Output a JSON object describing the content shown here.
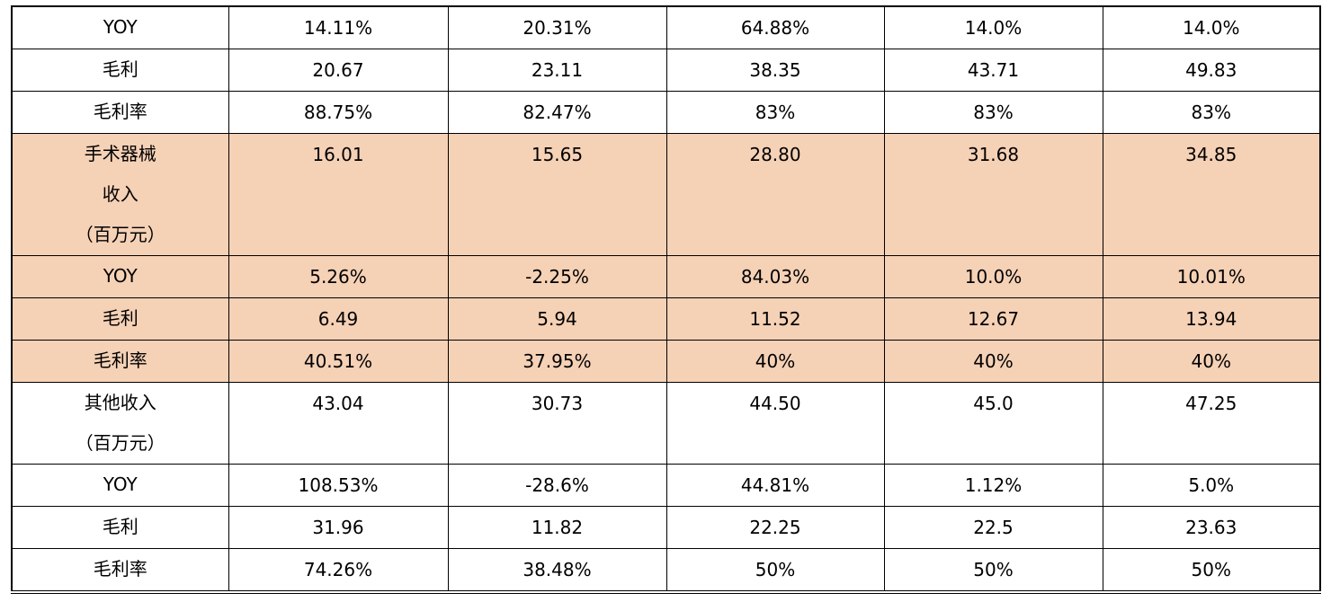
{
  "table": {
    "rows": [
      {
        "label": [
          "YOY"
        ],
        "cells": [
          "14.11%",
          "20.31%",
          "64.88%",
          "14.0%",
          "14.0%"
        ]
      },
      {
        "label": [
          "毛利"
        ],
        "cells": [
          "20.67",
          "23.11",
          "38.35",
          "43.71",
          "49.83"
        ]
      },
      {
        "label": [
          "毛利率"
        ],
        "cells": [
          "88.75%",
          "82.47%",
          "83%",
          "83%",
          "83%"
        ]
      },
      {
        "label": [
          "手术器械",
          "收入",
          "（百万元）"
        ],
        "cells": [
          "16.01",
          "15.65",
          "28.80",
          "31.68",
          "34.85"
        ],
        "shade": "#f5d1b6"
      },
      {
        "label": [
          "YOY"
        ],
        "cells": [
          "5.26%",
          "-2.25%",
          "84.03%",
          "10.0%",
          "10.01%"
        ],
        "shade": "#f5d1b6"
      },
      {
        "label": [
          "毛利"
        ],
        "cells": [
          "6.49",
          "5.94",
          "11.52",
          "12.67",
          "13.94"
        ],
        "shade": "#f5d1b6"
      },
      {
        "label": [
          "毛利率"
        ],
        "cells": [
          "40.51%",
          "37.95%",
          "40%",
          "40%",
          "40%"
        ],
        "shade": "#f5d1b6"
      },
      {
        "label": [
          "其他收入",
          "（百万元）"
        ],
        "cells": [
          "43.04",
          "30.73",
          "44.50",
          "45.0",
          "47.25"
        ]
      },
      {
        "label": [
          "YOY"
        ],
        "cells": [
          "108.53%",
          "-28.6%",
          "44.81%",
          "1.12%",
          "5.0%"
        ]
      },
      {
        "label": [
          "毛利"
        ],
        "cells": [
          "31.96",
          "11.82",
          "22.25",
          "22.5",
          "23.63"
        ]
      },
      {
        "label": [
          "毛利率"
        ],
        "cells": [
          "74.26%",
          "38.48%",
          "50%",
          "50%",
          "50%"
        ]
      }
    ]
  }
}
